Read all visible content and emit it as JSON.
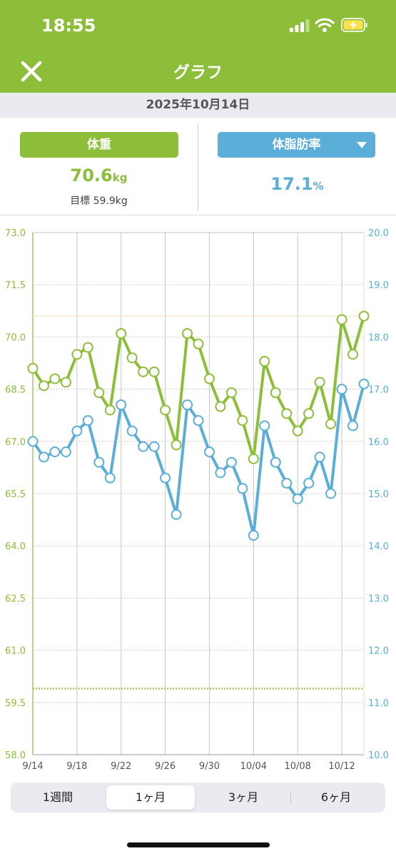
{
  "status_bar": {
    "time": "18:55"
  },
  "header": {
    "title": "グラフ"
  },
  "date": "2025年10月14日",
  "summary": {
    "weight": {
      "label": "体重",
      "value": "70.6",
      "unit": "kg",
      "goal": "目標 59.9kg"
    },
    "fat": {
      "label": "体脂肪率",
      "value": "17.1",
      "unit": "%"
    }
  },
  "colors": {
    "green": "#8dbe3a",
    "blue": "#5aaed8",
    "goal_line": "#a8cc5c",
    "current_line": "#f0d9bf"
  },
  "chart_data": {
    "type": "line",
    "x": [
      "9/14",
      "9/15",
      "9/16",
      "9/17",
      "9/18",
      "9/19",
      "9/20",
      "9/21",
      "9/22",
      "9/23",
      "9/24",
      "9/25",
      "9/26",
      "9/27",
      "9/28",
      "9/29",
      "9/30",
      "10/01",
      "10/02",
      "10/03",
      "10/04",
      "10/05",
      "10/06",
      "10/07",
      "10/08",
      "10/09",
      "10/10",
      "10/11",
      "10/12",
      "10/13",
      "10/14"
    ],
    "x_tick_labels": [
      "9/14",
      "9/18",
      "9/22",
      "9/26",
      "9/30",
      "10/04",
      "10/08",
      "10/12"
    ],
    "series": [
      {
        "values": [
          69.1,
          68.6,
          68.8,
          68.7,
          69.5,
          69.7,
          68.4,
          67.9,
          70.1,
          69.4,
          69.0,
          69.0,
          67.9,
          66.9,
          70.1,
          69.8,
          68.8,
          68.0,
          68.4,
          67.6,
          66.5,
          69.3,
          68.4,
          67.8,
          67.3,
          67.8,
          68.7,
          67.5,
          70.5,
          69.5,
          70.6
        ],
        "axis": "left"
      },
      {
        "values": [
          16.0,
          15.7,
          15.8,
          15.8,
          16.2,
          16.4,
          15.6,
          15.3,
          16.7,
          16.2,
          15.9,
          15.9,
          15.3,
          14.6,
          16.7,
          16.4,
          15.8,
          15.4,
          15.6,
          15.1,
          14.2,
          16.3,
          15.6,
          15.2,
          14.9,
          15.2,
          15.7,
          15.0,
          17.0,
          16.3,
          17.1
        ],
        "axis": "right"
      }
    ],
    "y_left": {
      "lim": [
        58.0,
        73.0
      ],
      "ticks": [
        "73.0",
        "71.5",
        "70.0",
        "68.5",
        "67.0",
        "65.5",
        "64.0",
        "62.5",
        "61.0",
        "59.5",
        "58.0"
      ]
    },
    "y_right": {
      "lim": [
        10.0,
        20.0
      ],
      "ticks": [
        "20.0",
        "19.0",
        "18.0",
        "17.0",
        "16.0",
        "15.0",
        "14.0",
        "13.0",
        "12.0",
        "11.0",
        "10.0"
      ]
    },
    "goal_weight": 59.9,
    "grid": true
  },
  "range_tabs": [
    {
      "label": "1週間",
      "active": false
    },
    {
      "label": "1ヶ月",
      "active": true
    },
    {
      "label": "3ヶ月",
      "active": false
    },
    {
      "label": "6ヶ月",
      "active": false
    }
  ]
}
